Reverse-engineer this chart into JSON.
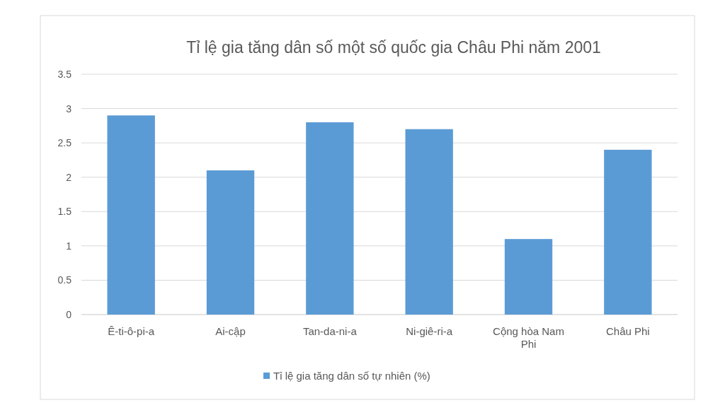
{
  "chart_data": {
    "type": "bar",
    "title": "Tỉ lệ gia tăng dân số một số quốc gia Châu Phi năm 2001",
    "categories": [
      "Ê-ti-ô-pi-a",
      "Ai-cập",
      "Tan-da-ni-a",
      "Ni-giê-ri-a",
      "Cộng hòa Nam Phi",
      "Châu Phi"
    ],
    "series": [
      {
        "name": "Tỉ lệ gia tăng dân số tự nhiên (%)",
        "color": "#5b9bd5",
        "values": [
          2.9,
          2.1,
          2.8,
          2.7,
          1.1,
          2.4
        ]
      }
    ],
    "ylim": [
      0,
      3.5
    ],
    "yticks": [
      0,
      0.5,
      1,
      1.5,
      2,
      2.5,
      3,
      3.5
    ],
    "grid": "y",
    "legend": "bottom"
  }
}
